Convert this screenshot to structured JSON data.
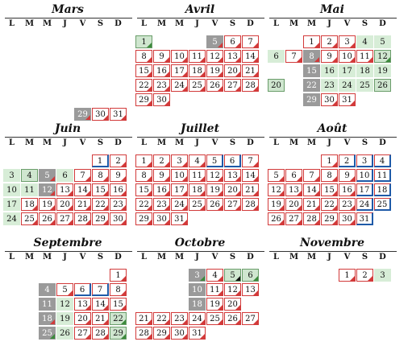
{
  "weekday_headers": [
    "L",
    "M",
    "M",
    "J",
    "V",
    "S",
    "D"
  ],
  "colors": {
    "red": "#d23a3a",
    "blue": "#1e5aa8",
    "green": "#3c8a3c",
    "light_green": "#d7edd7",
    "gray": "#9a9a9a",
    "black": "#111111"
  },
  "months": [
    {
      "name": "Mars",
      "days": [
        {
          "d": "29",
          "k": "dark",
          "t": "red"
        },
        {
          "d": "30",
          "k": "plain",
          "t": "red"
        },
        {
          "d": "31",
          "k": "plain",
          "t": "red"
        }
      ]
    },
    {
      "name": "Avril",
      "days": [
        {
          "d": "1",
          "k": "sel",
          "t": "green"
        },
        {
          "d": "5",
          "k": "dark",
          "t": "red"
        },
        {
          "d": "6",
          "k": "plain",
          "t": "red"
        },
        {
          "d": "7",
          "k": "plain",
          "t": "red"
        },
        {
          "d": "8",
          "k": "plain",
          "t": "red"
        },
        {
          "d": "9",
          "k": "plain",
          "t": "red"
        },
        {
          "d": "10",
          "k": "plain",
          "t": "red"
        },
        {
          "d": "11",
          "k": "plain",
          "t": "red"
        },
        {
          "d": "12",
          "k": "plain",
          "t": "red"
        },
        {
          "d": "13",
          "k": "plain",
          "t": "red"
        },
        {
          "d": "14",
          "k": "plain",
          "t": "red"
        },
        {
          "d": "15",
          "k": "plain",
          "t": "red"
        },
        {
          "d": "16",
          "k": "plain",
          "t": "red"
        },
        {
          "d": "17",
          "k": "plain",
          "t": "red"
        },
        {
          "d": "18",
          "k": "plain",
          "t": "red"
        },
        {
          "d": "19",
          "k": "plain",
          "t": "red"
        },
        {
          "d": "20",
          "k": "plain",
          "t": "red"
        },
        {
          "d": "21",
          "k": "plain",
          "t": "red"
        },
        {
          "d": "22",
          "k": "plain",
          "t": "red"
        },
        {
          "d": "23",
          "k": "plain",
          "t": "red"
        },
        {
          "d": "24",
          "k": "plain",
          "t": "red"
        },
        {
          "d": "25",
          "k": "plain",
          "t": "red"
        },
        {
          "d": "26",
          "k": "plain",
          "t": "red"
        },
        {
          "d": "27",
          "k": "plain",
          "t": "red"
        },
        {
          "d": "28",
          "k": "plain",
          "t": "red"
        },
        {
          "d": "29",
          "k": "plain",
          "t": "red"
        },
        {
          "d": "30",
          "k": "plain",
          "t": "red"
        }
      ]
    },
    {
      "name": "Mai",
      "days": [
        {
          "d": "1",
          "k": "plain",
          "t": "red"
        },
        {
          "d": "2",
          "k": "plain",
          "t": "red"
        },
        {
          "d": "3",
          "k": "plain",
          "t": "red"
        },
        {
          "d": "4",
          "k": "green",
          "t": ""
        },
        {
          "d": "5",
          "k": "green",
          "t": ""
        },
        {
          "d": "6",
          "k": "green",
          "t": ""
        },
        {
          "d": "7",
          "k": "plain",
          "t": "red"
        },
        {
          "d": "8",
          "k": "dark",
          "t": "red"
        },
        {
          "d": "9",
          "k": "plain",
          "t": "red"
        },
        {
          "d": "10",
          "k": "plain",
          "t": "red"
        },
        {
          "d": "11",
          "k": "plain",
          "t": "red"
        },
        {
          "d": "12",
          "k": "sel",
          "t": "green"
        },
        {
          "d": "15",
          "k": "dark",
          "t": ""
        },
        {
          "d": "16",
          "k": "green",
          "t": ""
        },
        {
          "d": "17",
          "k": "green",
          "t": ""
        },
        {
          "d": "18",
          "k": "green",
          "t": ""
        },
        {
          "d": "19",
          "k": "green",
          "t": ""
        },
        {
          "d": "20",
          "k": "sel",
          "t": ""
        },
        {
          "d": "22",
          "k": "dark",
          "t": ""
        },
        {
          "d": "23",
          "k": "green",
          "t": ""
        },
        {
          "d": "24",
          "k": "green",
          "t": ""
        },
        {
          "d": "25",
          "k": "green",
          "t": ""
        },
        {
          "d": "26",
          "k": "sel",
          "t": ""
        },
        {
          "d": "29",
          "k": "dark",
          "t": ""
        },
        {
          "d": "30",
          "k": "plain",
          "t": "red"
        },
        {
          "d": "31",
          "k": "plain",
          "t": "red"
        }
      ]
    },
    {
      "name": "Juin",
      "days": [
        {
          "d": "1",
          "k": "plain",
          "t": "blue"
        },
        {
          "d": "2",
          "k": "plain",
          "t": "red"
        },
        {
          "d": "3",
          "k": "green",
          "t": ""
        },
        {
          "d": "4",
          "k": "sel",
          "t": ""
        },
        {
          "d": "5",
          "k": "dark",
          "t": "red"
        },
        {
          "d": "6",
          "k": "green",
          "t": ""
        },
        {
          "d": "7",
          "k": "plain",
          "t": "red"
        },
        {
          "d": "8",
          "k": "plain",
          "t": "red"
        },
        {
          "d": "9",
          "k": "plain",
          "t": "red"
        },
        {
          "d": "10",
          "k": "green",
          "t": ""
        },
        {
          "d": "11",
          "k": "green",
          "t": ""
        },
        {
          "d": "12",
          "k": "dark",
          "t": "red"
        },
        {
          "d": "13",
          "k": "plain",
          "t": "red"
        },
        {
          "d": "14",
          "k": "plain",
          "t": "red"
        },
        {
          "d": "15",
          "k": "plain",
          "t": "red"
        },
        {
          "d": "16",
          "k": "plain",
          "t": "red"
        },
        {
          "d": "17",
          "k": "green",
          "t": ""
        },
        {
          "d": "18",
          "k": "plain",
          "t": "red"
        },
        {
          "d": "19",
          "k": "plain",
          "t": "red"
        },
        {
          "d": "20",
          "k": "plain",
          "t": "red"
        },
        {
          "d": "21",
          "k": "plain",
          "t": "red"
        },
        {
          "d": "22",
          "k": "plain",
          "t": "red"
        },
        {
          "d": "23",
          "k": "plain",
          "t": "red"
        },
        {
          "d": "24",
          "k": "green",
          "t": ""
        },
        {
          "d": "25",
          "k": "plain",
          "t": "red"
        },
        {
          "d": "26",
          "k": "plain",
          "t": "red"
        },
        {
          "d": "27",
          "k": "plain",
          "t": "red"
        },
        {
          "d": "28",
          "k": "plain",
          "t": "red"
        },
        {
          "d": "29",
          "k": "plain",
          "t": "red"
        },
        {
          "d": "30",
          "k": "plain",
          "t": "red"
        }
      ]
    },
    {
      "name": "Juillet",
      "days": [
        {
          "d": "1",
          "k": "plain",
          "t": "red"
        },
        {
          "d": "2",
          "k": "plain",
          "t": "red"
        },
        {
          "d": "3",
          "k": "plain",
          "t": "red"
        },
        {
          "d": "4",
          "k": "plain",
          "t": "red"
        },
        {
          "d": "5",
          "k": "plain",
          "t": "blue"
        },
        {
          "d": "6",
          "k": "plain",
          "t": "blue"
        },
        {
          "d": "7",
          "k": "plain",
          "t": "red"
        },
        {
          "d": "8",
          "k": "plain",
          "t": "red"
        },
        {
          "d": "9",
          "k": "plain",
          "t": "red"
        },
        {
          "d": "10",
          "k": "plain",
          "t": "red"
        },
        {
          "d": "11",
          "k": "plain",
          "t": "red"
        },
        {
          "d": "12",
          "k": "plain",
          "t": "red"
        },
        {
          "d": "13",
          "k": "plain",
          "t": "red"
        },
        {
          "d": "14",
          "k": "plain",
          "t": "red"
        },
        {
          "d": "15",
          "k": "plain",
          "t": "red"
        },
        {
          "d": "16",
          "k": "plain",
          "t": "red"
        },
        {
          "d": "17",
          "k": "plain",
          "t": "red"
        },
        {
          "d": "18",
          "k": "plain",
          "t": "red"
        },
        {
          "d": "19",
          "k": "plain",
          "t": "red"
        },
        {
          "d": "20",
          "k": "plain",
          "t": "red"
        },
        {
          "d": "21",
          "k": "plain",
          "t": "red"
        },
        {
          "d": "22",
          "k": "plain",
          "t": "red"
        },
        {
          "d": "23",
          "k": "plain",
          "t": "red"
        },
        {
          "d": "24",
          "k": "plain",
          "t": "red"
        },
        {
          "d": "25",
          "k": "plain",
          "t": "red"
        },
        {
          "d": "26",
          "k": "plain",
          "t": "red"
        },
        {
          "d": "27",
          "k": "plain",
          "t": "red"
        },
        {
          "d": "28",
          "k": "plain",
          "t": "red"
        },
        {
          "d": "29",
          "k": "plain",
          "t": "red"
        },
        {
          "d": "30",
          "k": "plain",
          "t": "red"
        },
        {
          "d": "31",
          "k": "plain",
          "t": "red"
        }
      ]
    },
    {
      "name": "Août",
      "days": [
        {
          "d": "1",
          "k": "plain",
          "t": "red"
        },
        {
          "d": "2",
          "k": "plain",
          "t": "blue"
        },
        {
          "d": "3",
          "k": "plain",
          "t": "blue"
        },
        {
          "d": "4",
          "k": "plain",
          "t": "blue"
        },
        {
          "d": "5",
          "k": "plain",
          "t": "red"
        },
        {
          "d": "6",
          "k": "plain",
          "t": "red"
        },
        {
          "d": "7",
          "k": "plain",
          "t": "red"
        },
        {
          "d": "8",
          "k": "plain",
          "t": "red"
        },
        {
          "d": "9",
          "k": "plain",
          "t": "red"
        },
        {
          "d": "10",
          "k": "plain",
          "t": "blue"
        },
        {
          "d": "11",
          "k": "plain",
          "t": "blue"
        },
        {
          "d": "12",
          "k": "plain",
          "t": "red"
        },
        {
          "d": "13",
          "k": "plain",
          "t": "red"
        },
        {
          "d": "14",
          "k": "plain",
          "t": "red"
        },
        {
          "d": "15",
          "k": "plain",
          "t": "red"
        },
        {
          "d": "16",
          "k": "plain",
          "t": "red"
        },
        {
          "d": "17",
          "k": "plain",
          "t": "blue"
        },
        {
          "d": "18",
          "k": "plain",
          "t": "blue"
        },
        {
          "d": "19",
          "k": "plain",
          "t": "red"
        },
        {
          "d": "20",
          "k": "plain",
          "t": "red"
        },
        {
          "d": "21",
          "k": "plain",
          "t": "red"
        },
        {
          "d": "22",
          "k": "plain",
          "t": "red"
        },
        {
          "d": "23",
          "k": "plain",
          "t": "red"
        },
        {
          "d": "24",
          "k": "plain",
          "t": "blue"
        },
        {
          "d": "25",
          "k": "plain",
          "t": "blue"
        },
        {
          "d": "26",
          "k": "plain",
          "t": "red"
        },
        {
          "d": "27",
          "k": "plain",
          "t": "red"
        },
        {
          "d": "28",
          "k": "plain",
          "t": "red"
        },
        {
          "d": "29",
          "k": "plain",
          "t": "red"
        },
        {
          "d": "30",
          "k": "plain",
          "t": "red"
        },
        {
          "d": "31",
          "k": "plain",
          "t": "blue"
        }
      ]
    },
    {
      "name": "Septembre",
      "days": [
        {
          "d": "1",
          "k": "plain",
          "t": "red"
        },
        {
          "d": "4",
          "k": "dark",
          "t": ""
        },
        {
          "d": "5",
          "k": "plain",
          "t": "red"
        },
        {
          "d": "6",
          "k": "plain",
          "t": "blue"
        },
        {
          "d": "7",
          "k": "plain",
          "t": "blue"
        },
        {
          "d": "8",
          "k": "plain",
          "t": "red"
        },
        {
          "d": "11",
          "k": "dark",
          "t": ""
        },
        {
          "d": "12",
          "k": "green",
          "t": ""
        },
        {
          "d": "13",
          "k": "plain",
          "t": "red"
        },
        {
          "d": "14",
          "k": "plain",
          "t": "red"
        },
        {
          "d": "15",
          "k": "plain",
          "t": "red"
        },
        {
          "d": "18",
          "k": "dark",
          "t": "red"
        },
        {
          "d": "19",
          "k": "green",
          "t": ""
        },
        {
          "d": "20",
          "k": "plain",
          "t": "red"
        },
        {
          "d": "21",
          "k": "plain",
          "t": "red"
        },
        {
          "d": "22",
          "k": "sel",
          "t": "green"
        },
        {
          "d": "25",
          "k": "dark",
          "t": "green"
        },
        {
          "d": "26",
          "k": "green",
          "t": ""
        },
        {
          "d": "27",
          "k": "plain",
          "t": "red"
        },
        {
          "d": "28",
          "k": "plain",
          "t": "red"
        },
        {
          "d": "29",
          "k": "sel",
          "t": "green"
        }
      ]
    },
    {
      "name": "Octobre",
      "days": [
        {
          "d": "3",
          "k": "dark",
          "t": "green"
        },
        {
          "d": "4",
          "k": "plain",
          "t": "red"
        },
        {
          "d": "5",
          "k": "sel",
          "t": "black"
        },
        {
          "d": "6",
          "k": "sel",
          "t": "green"
        },
        {
          "d": "10",
          "k": "dark",
          "t": ""
        },
        {
          "d": "11",
          "k": "plain",
          "t": "red"
        },
        {
          "d": "12",
          "k": "plain",
          "t": "red"
        },
        {
          "d": "13",
          "k": "plain",
          "t": "red"
        },
        {
          "d": "18",
          "k": "dark",
          "t": ""
        },
        {
          "d": "19",
          "k": "plain",
          "t": "red"
        },
        {
          "d": "20",
          "k": "plain",
          "t": "red"
        },
        {
          "d": "21",
          "k": "plain",
          "t": "red"
        },
        {
          "d": "22",
          "k": "plain",
          "t": "red"
        },
        {
          "d": "23",
          "k": "plain",
          "t": "red"
        },
        {
          "d": "24",
          "k": "plain",
          "t": "red"
        },
        {
          "d": "25",
          "k": "plain",
          "t": "red"
        },
        {
          "d": "26",
          "k": "plain",
          "t": "red"
        },
        {
          "d": "27",
          "k": "plain",
          "t": "red"
        },
        {
          "d": "28",
          "k": "plain",
          "t": "red"
        },
        {
          "d": "29",
          "k": "plain",
          "t": "red"
        },
        {
          "d": "30",
          "k": "plain",
          "t": "red"
        },
        {
          "d": "31",
          "k": "plain",
          "t": "red"
        }
      ]
    },
    {
      "name": "Novembre",
      "days": [
        {
          "d": "1",
          "k": "plain",
          "t": "red"
        },
        {
          "d": "2",
          "k": "plain",
          "t": "red"
        },
        {
          "d": "3",
          "k": "green",
          "t": ""
        }
      ]
    }
  ]
}
